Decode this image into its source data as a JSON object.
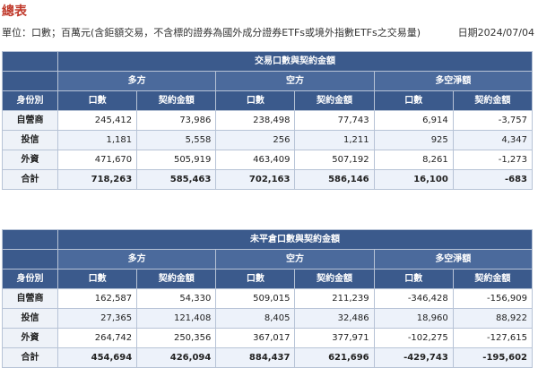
{
  "page": {
    "title": "總表",
    "unit_note": "單位：口數；百萬元(含鉅額交易，不含標的證券為國外成分證券ETFs或境外指數ETFs之交易量)",
    "date": "日期2024/07/04"
  },
  "table1": {
    "caption": "交易口數與契約金額",
    "groups": [
      "多方",
      "空方",
      "多空淨額"
    ],
    "row_header": "身份別",
    "sub_headers": [
      "口數",
      "契約金額",
      "口數",
      "契約金額",
      "口數",
      "契約金額"
    ],
    "rows": [
      {
        "label": "自營商",
        "values": [
          "245,412",
          "73,986",
          "238,498",
          "77,743",
          "6,914",
          "-3,757"
        ]
      },
      {
        "label": "投信",
        "values": [
          "1,181",
          "5,558",
          "256",
          "1,211",
          "925",
          "4,347"
        ]
      },
      {
        "label": "外資",
        "values": [
          "471,670",
          "505,919",
          "463,409",
          "507,192",
          "8,261",
          "-1,273"
        ]
      },
      {
        "label": "合計",
        "values": [
          "718,263",
          "585,463",
          "702,163",
          "586,146",
          "16,100",
          "-683"
        ]
      }
    ]
  },
  "table2": {
    "caption": "未平倉口數與契約金額",
    "groups": [
      "多方",
      "空方",
      "多空淨額"
    ],
    "row_header": "身份別",
    "sub_headers": [
      "口數",
      "契約金額",
      "口數",
      "契約金額",
      "口數",
      "契約金額"
    ],
    "rows": [
      {
        "label": "自營商",
        "values": [
          "162,587",
          "54,330",
          "509,015",
          "211,239",
          "-346,428",
          "-156,909"
        ]
      },
      {
        "label": "投信",
        "values": [
          "27,365",
          "121,408",
          "8,405",
          "32,486",
          "18,960",
          "88,922"
        ]
      },
      {
        "label": "外資",
        "values": [
          "264,742",
          "250,356",
          "367,017",
          "377,971",
          "-102,275",
          "-127,615"
        ]
      },
      {
        "label": "合計",
        "values": [
          "454,694",
          "426,094",
          "884,437",
          "621,696",
          "-429,743",
          "-195,602"
        ]
      }
    ]
  }
}
